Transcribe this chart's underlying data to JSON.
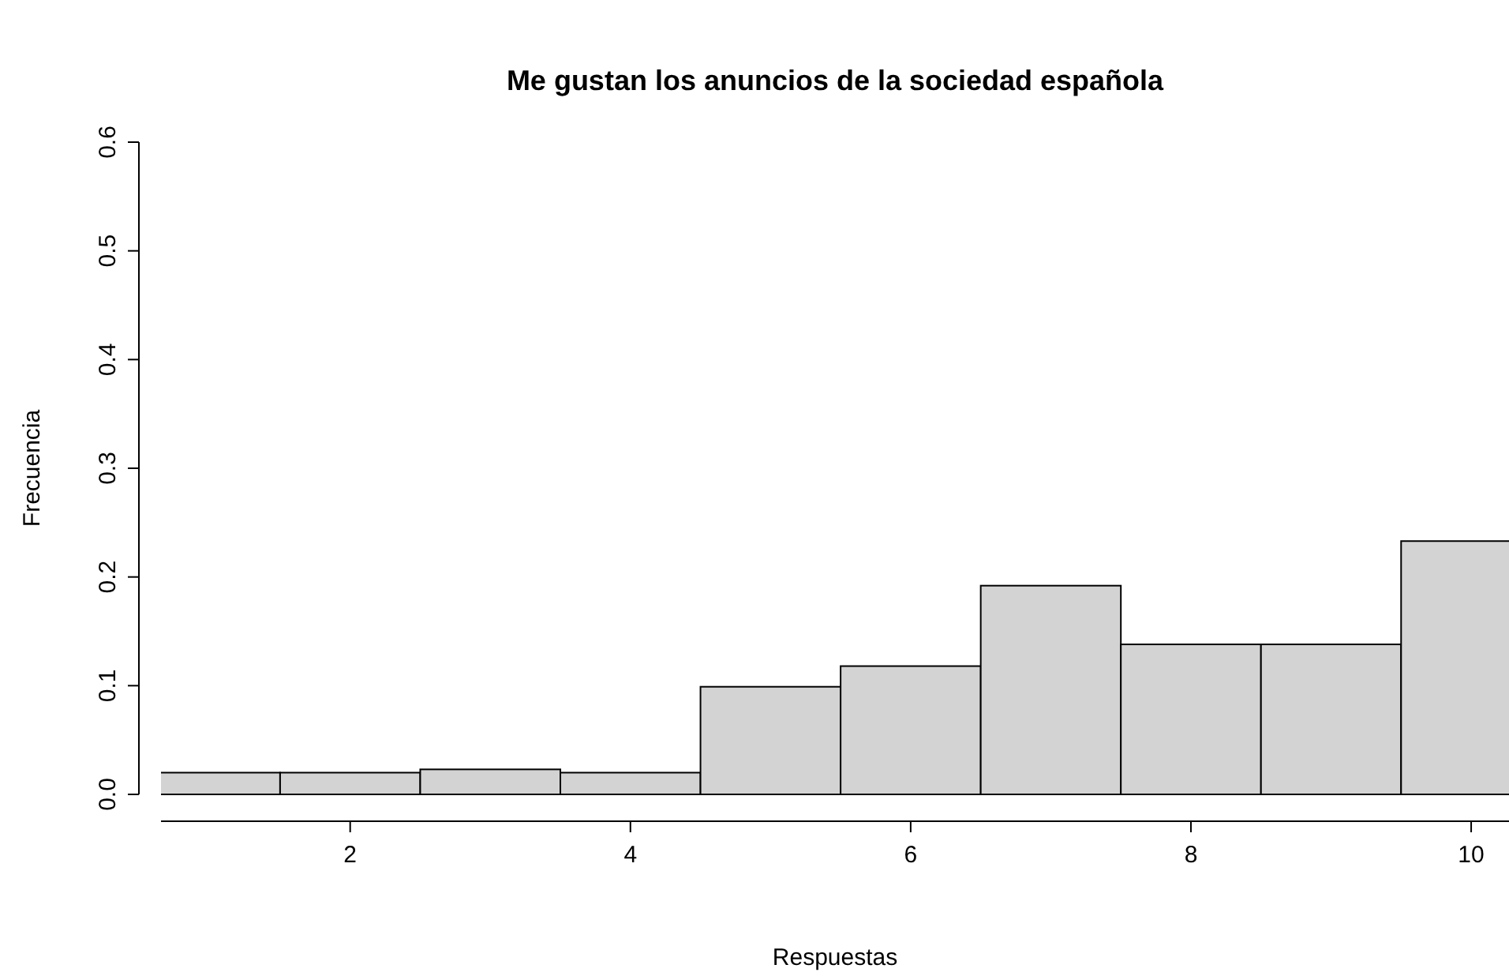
{
  "chart_data": {
    "type": "histogram",
    "title": "Me gustan los anuncios de la sociedad española",
    "xlabel": "Respuestas",
    "ylabel": "Frecuencia",
    "bins": [
      0.5,
      1.5,
      2.5,
      3.5,
      4.5,
      5.5,
      6.5,
      7.5,
      8.5,
      9.5,
      10.5
    ],
    "values": [
      0.02,
      0.02,
      0.023,
      0.02,
      0.099,
      0.118,
      0.192,
      0.138,
      0.138,
      0.233
    ],
    "color": "#d3d3d3",
    "xlim": [
      0.65,
      10.27
    ],
    "xticks": [
      2,
      4,
      6,
      8,
      10
    ],
    "ylim": [
      0,
      0.6
    ],
    "yticks": [
      {
        "value": 0,
        "label": "0.0"
      },
      {
        "value": 0.1,
        "label": "0.1"
      },
      {
        "value": 0.2,
        "label": "0.2"
      },
      {
        "value": 0.3,
        "label": "0.3"
      },
      {
        "value": 0.4,
        "label": "0.4"
      },
      {
        "value": 0.5,
        "label": "0.5"
      },
      {
        "value": 0.6,
        "label": "0.6"
      }
    ],
    "grid": false
  }
}
